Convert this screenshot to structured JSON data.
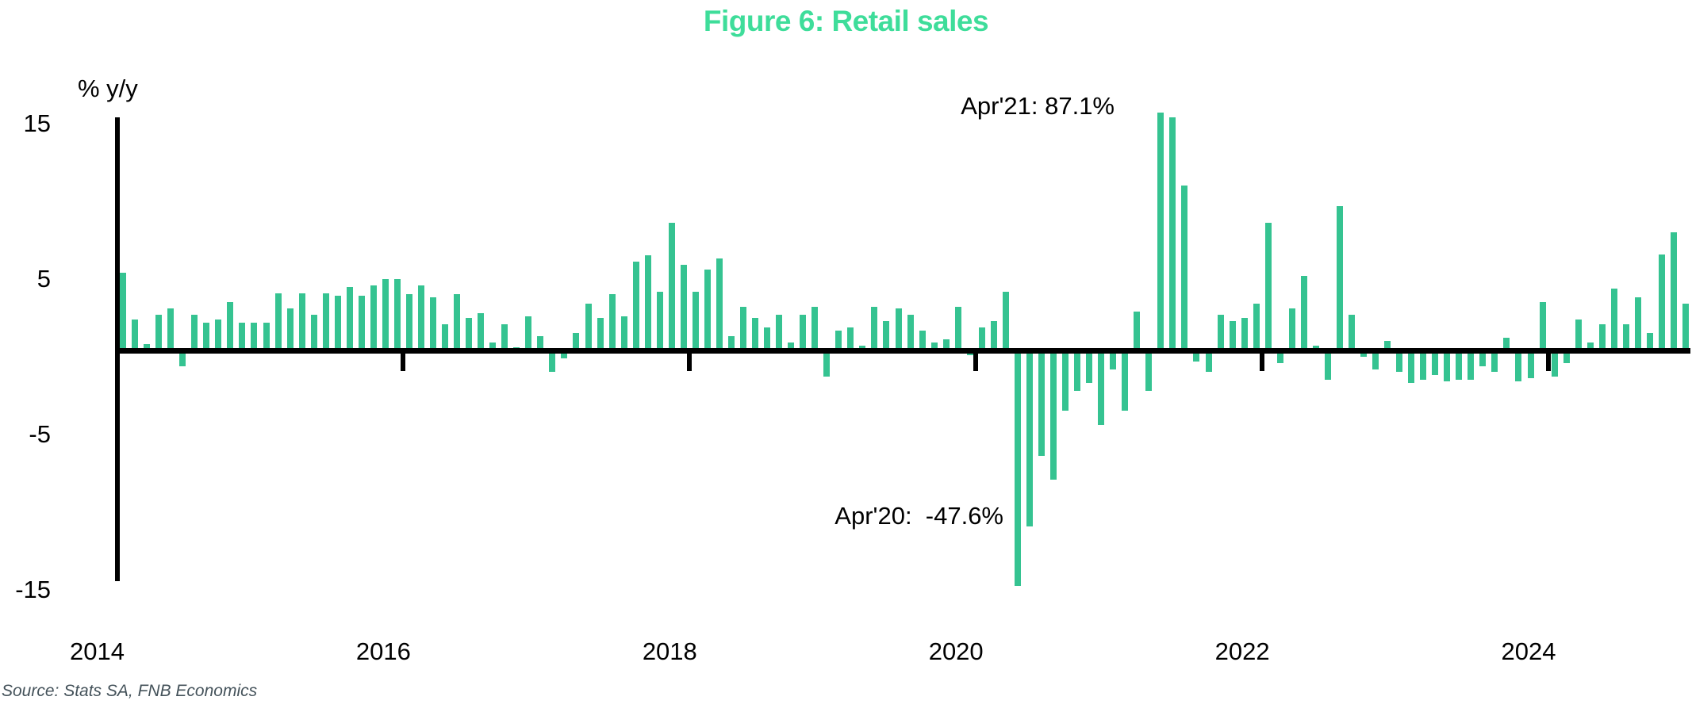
{
  "title": "Figure 6: Retail sales",
  "y_axis_label": "% y/y",
  "source": "Source: Stats SA, FNB Economics",
  "colors": {
    "title": "#3edd9a",
    "bar": "#35c391",
    "axis": "#000000",
    "source_text": "#44525a",
    "annotation_text": "#000000"
  },
  "annotations": [
    {
      "label": "Apr'21: 87.1%",
      "month": "2021-04",
      "true_value": 87.1
    },
    {
      "label": "Apr'20:  -47.6%",
      "month": "2020-04",
      "true_value": -47.6
    }
  ],
  "chart_data": {
    "type": "bar",
    "title": "Figure 6: Retail sales",
    "ylabel": "% y/y",
    "frequency": "monthly",
    "start_month": "2014-01",
    "end_month": "2024-12",
    "ylim": [
      -15,
      15
    ],
    "grid": false,
    "legend": "none",
    "y_tick_values": [
      15,
      5,
      -5,
      -15
    ],
    "y_tick_labels": [
      "15",
      "5",
      "-5",
      "-15"
    ],
    "x_tick_years": [
      "2014",
      "2016",
      "2018",
      "2020",
      "2022",
      "2024"
    ],
    "clipped_bars": {
      "2020-04": -47.6,
      "2021-04": 87.1
    },
    "values": [
      5.0,
      2.0,
      0.4,
      2.3,
      2.7,
      -1.0,
      2.3,
      1.8,
      2.0,
      3.1,
      1.8,
      1.8,
      1.8,
      3.7,
      2.7,
      3.7,
      2.3,
      3.7,
      3.5,
      4.1,
      3.5,
      4.2,
      4.6,
      4.6,
      3.6,
      4.2,
      3.4,
      1.7,
      3.6,
      2.1,
      2.4,
      0.5,
      1.7,
      0.2,
      2.2,
      0.9,
      -1.4,
      -0.5,
      1.1,
      3.0,
      2.1,
      3.6,
      2.2,
      5.7,
      6.1,
      3.8,
      8.2,
      5.5,
      3.8,
      5.2,
      5.9,
      0.9,
      2.8,
      2.1,
      1.5,
      2.3,
      0.5,
      2.3,
      2.8,
      -1.7,
      1.3,
      1.5,
      0.3,
      2.8,
      1.9,
      2.7,
      2.3,
      1.3,
      0.5,
      0.7,
      2.8,
      -0.3,
      1.5,
      1.9,
      3.8,
      -47.6,
      -11.3,
      -6.8,
      -8.3,
      -3.9,
      -2.6,
      -2.1,
      -4.8,
      -1.2,
      -3.9,
      2.5,
      -2.6,
      87.1,
      15.0,
      10.6,
      -0.7,
      -1.4,
      2.3,
      1.9,
      2.1,
      3.0,
      8.2,
      -0.8,
      2.7,
      4.8,
      0.3,
      -1.9,
      9.3,
      2.3,
      -0.4,
      -1.2,
      0.6,
      -1.4,
      -2.1,
      -1.9,
      -1.6,
      -2.0,
      -1.9,
      -1.9,
      -1.0,
      -1.4,
      0.8,
      -2.0,
      -1.8,
      3.1,
      -1.7,
      -0.8,
      2.0,
      0.5,
      1.7,
      4.0,
      1.7,
      3.4,
      1.1,
      6.2,
      7.6,
      3.0
    ]
  }
}
